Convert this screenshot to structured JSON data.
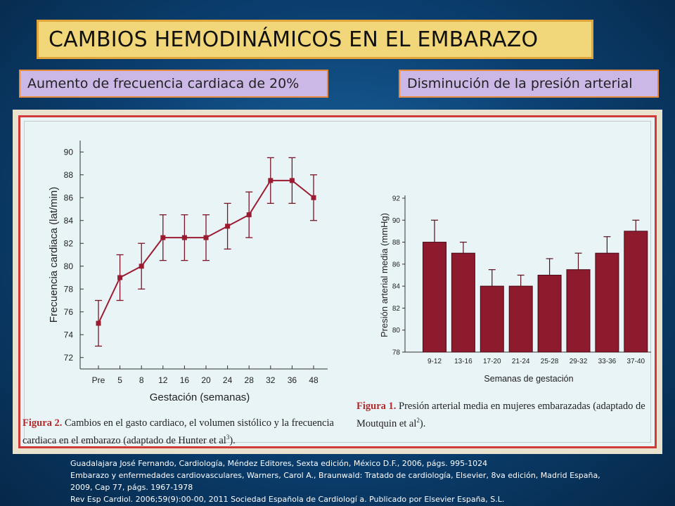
{
  "header": {
    "title": "CAMBIOS HEMODINÁMICOS EN EL EMBARAZO",
    "left_subtitle": "Aumento de frecuencia cardiaca de 20%",
    "right_subtitle": "Disminución de la presión arterial"
  },
  "captions": {
    "fig2_label": "Figura 2.",
    "fig2_text_line1": " Cambios en el gasto cardiaco, el volumen sistólico y la frecuencia",
    "fig2_text_line2": "cardiaca en el embarazo (adaptado de Hunter et al",
    "fig2_sup": "3",
    "fig2_end": ").",
    "fig1_label": "Figura 1.",
    "fig1_text_line1": " Presión arterial media en mujeres embarazadas (adaptado de",
    "fig1_text_line2": "Moutquin et al",
    "fig1_sup": "2",
    "fig1_end": ")."
  },
  "references": [
    "Guadalajara José Fernando, Cardiología, Méndez Editores, Sexta edición, México D.F., 2006, págs. 995-1024",
    "Embarazo y enfermedades cardiovasculares, Warners, Carol A., Braunwald: Tratado de cardiología, Elsevier, 8va edición, Madrid España,",
    "2009, Cap 77, págs. 1967-1978",
    "Rev Esp Cardiol. 2006;59(9):00-00, 2011 Sociedad Española de Cardiologí a. Publicado por Elsevier España, S.L."
  ],
  "chart_data": [
    {
      "type": "line",
      "xlabel": "Gestación (semanas)",
      "ylabel": "Frecuencia cardiaca (lat/min)",
      "categories": [
        "Pre",
        "5",
        "8",
        "12",
        "16",
        "20",
        "24",
        "28",
        "32",
        "36",
        "48"
      ],
      "values": [
        75,
        79,
        80,
        82.5,
        82.5,
        82.5,
        83.5,
        84.5,
        87.5,
        87.5,
        86
      ],
      "error_low": [
        73,
        77,
        78,
        80.5,
        80.5,
        80.5,
        81.5,
        82.5,
        85.5,
        85.5,
        84
      ],
      "error_high": [
        77,
        81,
        82,
        84.5,
        84.5,
        84.5,
        85.5,
        86.5,
        89.5,
        89.5,
        88
      ],
      "yticks": [
        72,
        74,
        76,
        78,
        80,
        82,
        84,
        86,
        88,
        90
      ],
      "ylim": [
        71,
        91
      ],
      "color": "#9b1b30"
    },
    {
      "type": "bar",
      "xlabel": "Semanas de gestación",
      "ylabel": "Presión arterial media (mmHg)",
      "categories": [
        "9-12",
        "13-16",
        "17-20",
        "21-24",
        "25-28",
        "29-32",
        "33-36",
        "37-40"
      ],
      "values": [
        88,
        87,
        84,
        84,
        85,
        85.5,
        87,
        89
      ],
      "error_high": [
        90,
        88,
        85.5,
        85,
        86.5,
        87,
        88.5,
        90
      ],
      "yticks": [
        78,
        80,
        82,
        84,
        86,
        88,
        90,
        92
      ],
      "ylim": [
        78,
        92
      ],
      "color": "#8e1a2e"
    }
  ]
}
